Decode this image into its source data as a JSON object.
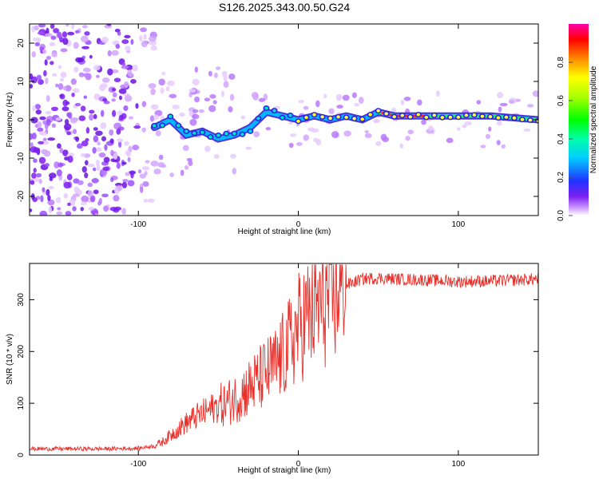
{
  "figure": {
    "title": "S126.2025.343.00.50.G24"
  },
  "chart_data": [
    {
      "type": "heatmap",
      "name": "spectrogram",
      "xlabel": "Height of straight line (km)",
      "ylabel": "Frequency (Hz)",
      "xlim": [
        -168,
        150
      ],
      "ylim": [
        -25,
        25
      ],
      "xticks": [
        -100,
        0,
        100
      ],
      "yticks": [
        -20,
        -10,
        0,
        10,
        20
      ],
      "carrier_track": [
        {
          "x": -90,
          "y": -2
        },
        {
          "x": -80,
          "y": 0
        },
        {
          "x": -70,
          "y": -4
        },
        {
          "x": -60,
          "y": -3
        },
        {
          "x": -50,
          "y": -5
        },
        {
          "x": -40,
          "y": -4
        },
        {
          "x": -30,
          "y": -2
        },
        {
          "x": -20,
          "y": 2
        },
        {
          "x": -10,
          "y": 1
        },
        {
          "x": 0,
          "y": 0
        },
        {
          "x": 10,
          "y": 1
        },
        {
          "x": 20,
          "y": 0
        },
        {
          "x": 30,
          "y": 1
        },
        {
          "x": 40,
          "y": 0
        },
        {
          "x": 50,
          "y": 2
        },
        {
          "x": 60,
          "y": 1
        },
        {
          "x": 80,
          "y": 1
        },
        {
          "x": 100,
          "y": 1
        },
        {
          "x": 120,
          "y": 1
        },
        {
          "x": 150,
          "y": 0
        }
      ],
      "colorbar": {
        "label": "Normalized spectral amplitude",
        "range": [
          0,
          1
        ],
        "ticks": [
          "0.0",
          "0.2",
          "0.4",
          "0.6",
          "0.8"
        ]
      }
    },
    {
      "type": "line",
      "name": "snr",
      "xlabel": "Height of straight line (km)",
      "ylabel": "SNR (10 * v/v)",
      "xlim": [
        -168,
        150
      ],
      "ylim": [
        0,
        370
      ],
      "xticks": [
        -100,
        0,
        100
      ],
      "yticks": [
        0,
        100,
        200,
        300
      ],
      "color": "#e8302a",
      "series": [
        {
          "name": "SNR",
          "x": [
            -168,
            -140,
            -120,
            -100,
            -90,
            -85,
            -80,
            -75,
            -70,
            -65,
            -60,
            -55,
            -50,
            -45,
            -40,
            -35,
            -30,
            -25,
            -20,
            -15,
            -10,
            -5,
            0,
            5,
            10,
            15,
            20,
            25,
            30,
            40,
            50,
            60,
            80,
            100,
            120,
            150
          ],
          "y": [
            12,
            12,
            12,
            13,
            18,
            25,
            38,
            50,
            62,
            72,
            80,
            88,
            95,
            100,
            108,
            120,
            132,
            145,
            158,
            170,
            190,
            215,
            245,
            265,
            280,
            292,
            305,
            318,
            328,
            340,
            342,
            340,
            338,
            335,
            336,
            340
          ]
        }
      ]
    }
  ]
}
